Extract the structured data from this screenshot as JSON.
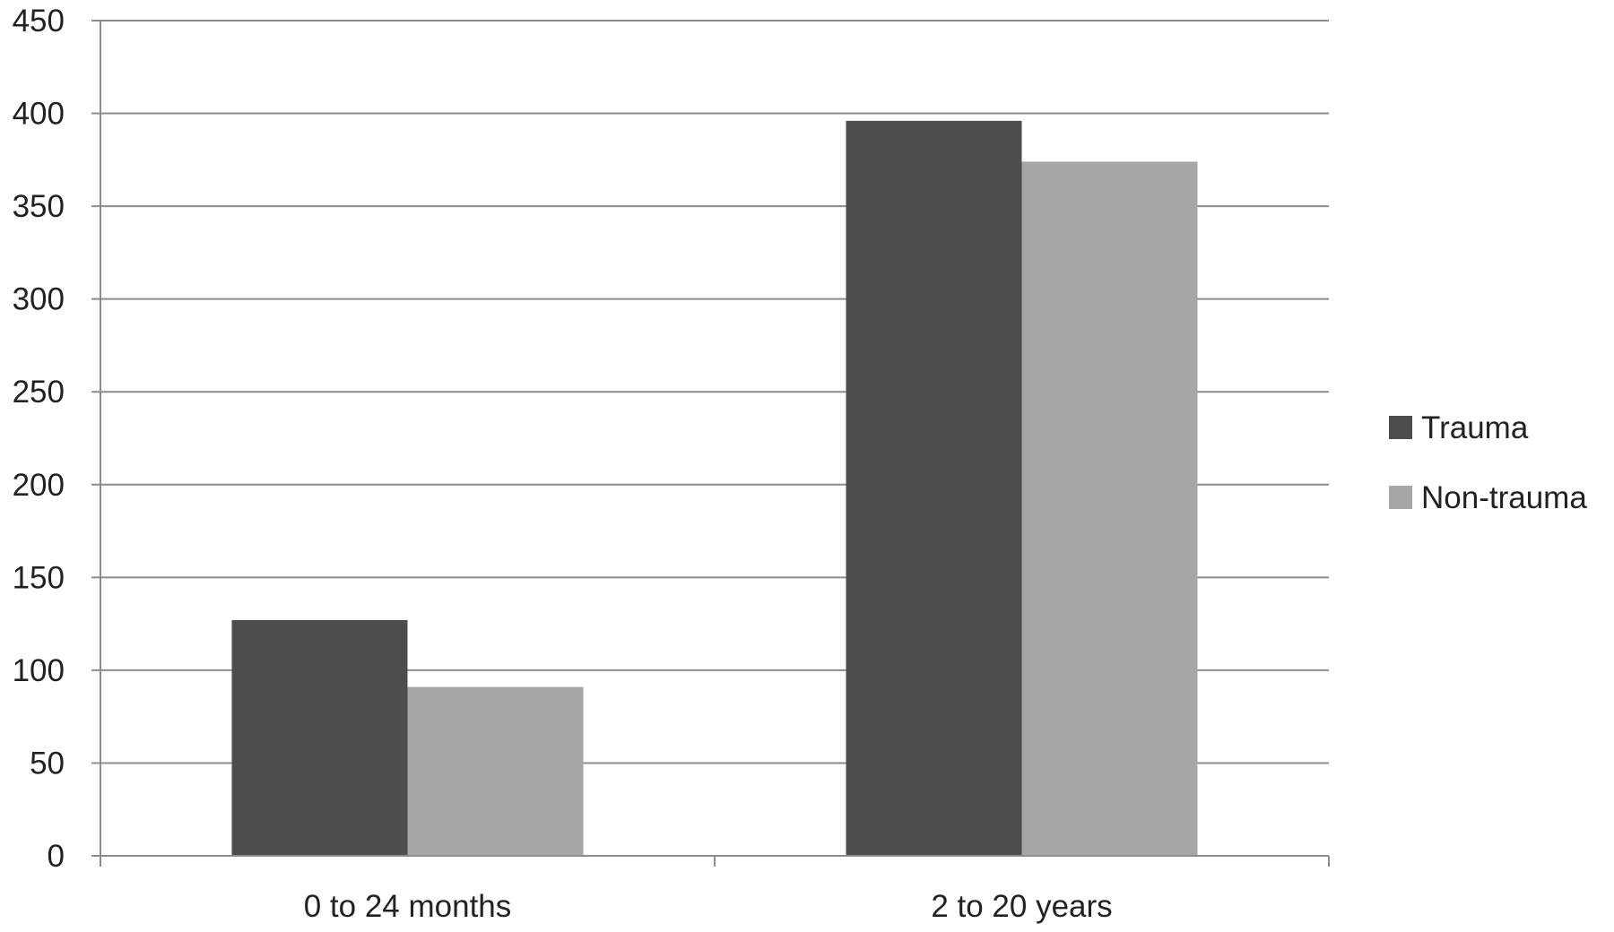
{
  "chart_data": {
    "type": "bar",
    "categories": [
      "0 to 24 months",
      "2 to 20 years"
    ],
    "series": [
      {
        "name": "Trauma",
        "values": [
          127,
          396
        ],
        "color": "#4d4d4d"
      },
      {
        "name": "Non-trauma",
        "values": [
          91,
          374
        ],
        "color": "#a6a6a6"
      }
    ],
    "title": "",
    "xlabel": "",
    "ylabel": "",
    "ylim": [
      0,
      450
    ],
    "yticks": [
      "0",
      "50",
      "100",
      "150",
      "200",
      "250",
      "300",
      "350",
      "400",
      "450"
    ],
    "grid": true,
    "legend_position": "right"
  }
}
